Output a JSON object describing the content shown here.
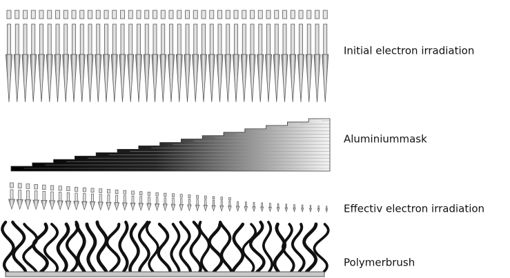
{
  "labels": [
    "Initial electron irradiation",
    "Aluminiummask",
    "Effectiv electron irradiation",
    "Polymerbrush"
  ]
}
